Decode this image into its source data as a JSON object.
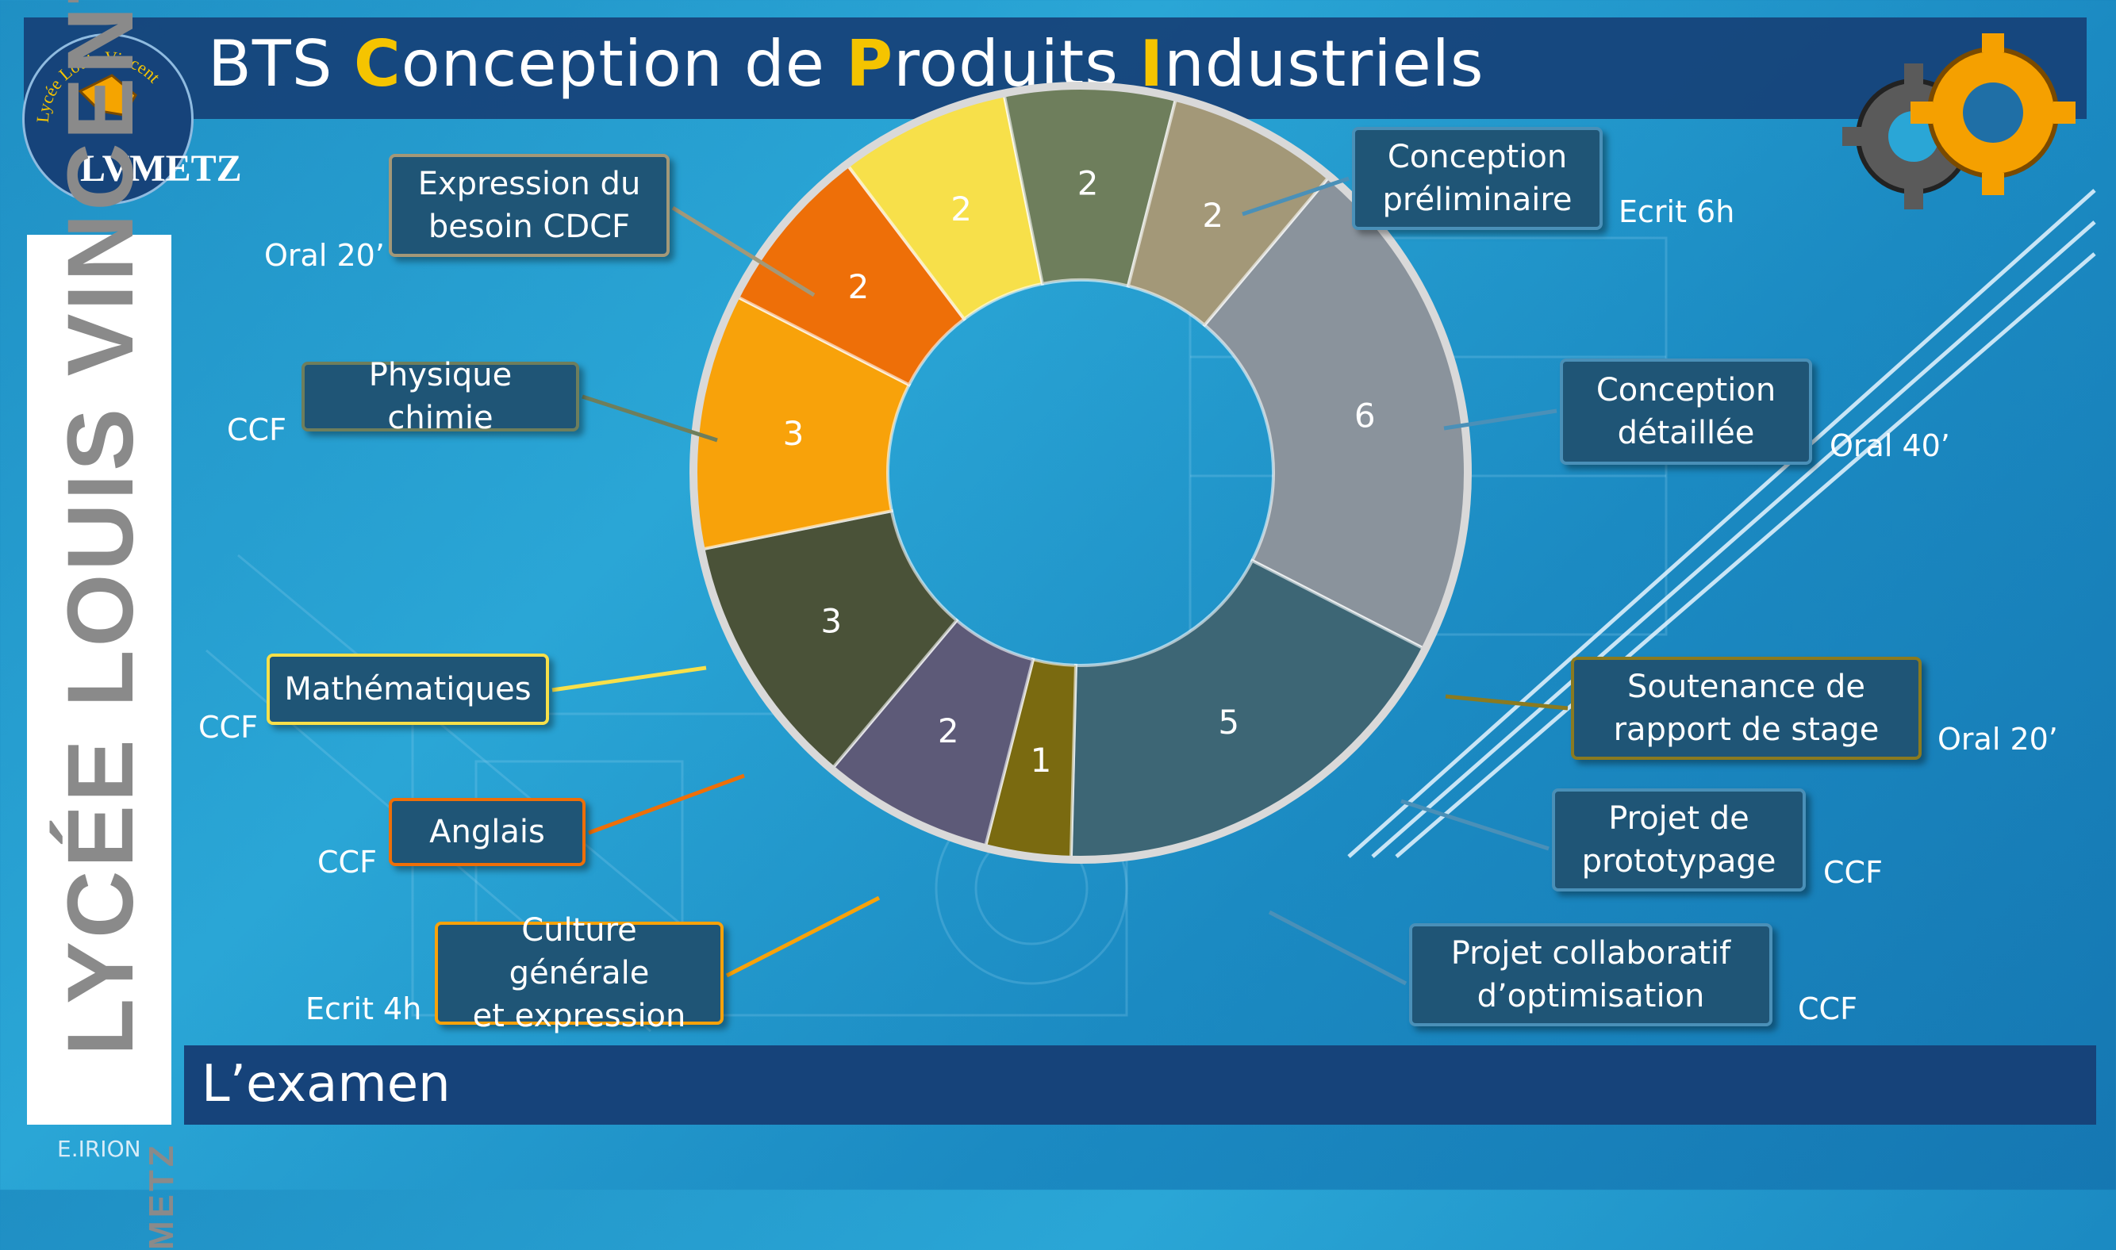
{
  "title": {
    "parts": [
      {
        "text": "BTS ",
        "cap": false
      },
      {
        "text": "C",
        "cap": true
      },
      {
        "text": "onception de ",
        "cap": false
      },
      {
        "text": "P",
        "cap": true
      },
      {
        "text": "roduits ",
        "cap": false
      },
      {
        "text": "I",
        "cap": true
      },
      {
        "text": "ndustriels",
        "cap": false
      }
    ]
  },
  "logo": {
    "ring_text": "Lycée Louis Vincent",
    "mark": "LVMETZ"
  },
  "side_panel": {
    "school": "LYCÉE LOUIS VINCENT",
    "city": "METZ"
  },
  "bottom_title": "L’examen",
  "author": "E.IRION",
  "colors": {
    "accent": "#f5c400",
    "bar": "#16437a"
  },
  "chart_data": {
    "type": "pie",
    "donut": true,
    "title": "",
    "slices": [
      {
        "label": "Conception préliminaire",
        "value": 6,
        "note": "Ecrit 6h",
        "color": "#8a939c"
      },
      {
        "label": "Conception détaillée",
        "value": 5,
        "note": "Oral 40’",
        "color": "#3d6675"
      },
      {
        "label": "Soutenance de rapport de stage",
        "value": 1,
        "note": "Oral 20’",
        "color": "#7a6a10"
      },
      {
        "label": "Projet de prototypage",
        "value": 2,
        "note": "CCF",
        "color": "#5d5a78"
      },
      {
        "label": "Projet collaboratif d’optimisation",
        "value": 3,
        "note": "CCF",
        "color": "#4a5238"
      },
      {
        "label": "Culture générale et expression",
        "value": 3,
        "note": "Ecrit 4h",
        "color": "#f8a20a"
      },
      {
        "label": "Anglais",
        "value": 2,
        "note": "CCF",
        "color": "#ee6f08"
      },
      {
        "label": "Mathématiques",
        "value": 2,
        "note": "CCF",
        "color": "#f7e04a"
      },
      {
        "label": "Physique chimie",
        "value": 2,
        "note": "CCF",
        "color": "#6e7e5c"
      },
      {
        "label": "Expression du besoin CDCF",
        "value": 2,
        "note": "Oral 20’",
        "color": "#a39878"
      }
    ]
  },
  "callouts": [
    {
      "text": "Conception\npréliminaire",
      "note": "Ecrit 6h",
      "border": "#4a90b8"
    },
    {
      "text": "Conception\ndétaillée",
      "note": "Oral 40’",
      "border": "#4a90b8"
    },
    {
      "text": "Soutenance de\nrapport de stage",
      "note": "Oral 20’",
      "border": "#8a7a20"
    },
    {
      "text": "Projet de\nprototypage",
      "note": "CCF",
      "border": "#4a90b8"
    },
    {
      "text": "Projet collaboratif\nd’optimisation",
      "note": "CCF",
      "border": "#4a90b8"
    },
    {
      "text": "Culture générale\net expression",
      "note": "Ecrit 4h",
      "border": "#f8a20a"
    },
    {
      "text": "Anglais",
      "note": "CCF",
      "border": "#ee6f08"
    },
    {
      "text": "Mathématiques",
      "note": "CCF",
      "border": "#f7e04a"
    },
    {
      "text": "Physique chimie",
      "note": "CCF",
      "border": "#6e7e5c"
    },
    {
      "text": "Expression du\nbesoin CDCF",
      "note": "Oral 20’",
      "border": "#a39878"
    }
  ]
}
